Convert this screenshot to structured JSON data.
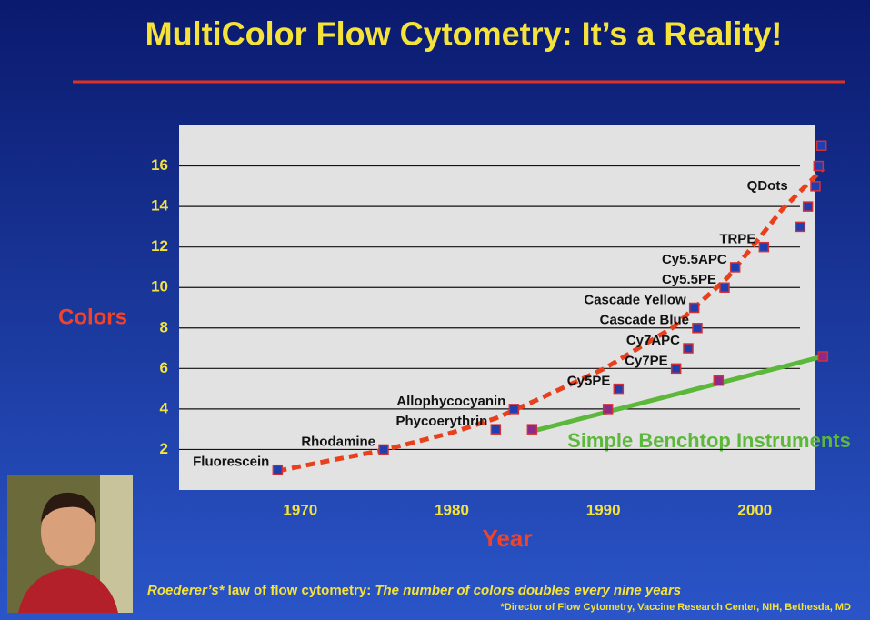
{
  "chart_data": {
    "type": "scatter",
    "title": "MultiColor Flow Cytometry:  It’s a Reality!",
    "x_label": "Year",
    "y_label": "Colors",
    "xlim": [
      1962,
      2004
    ],
    "ylim": [
      0,
      18
    ],
    "xticks": [
      1970,
      1980,
      1990,
      2000
    ],
    "yticks": [
      2,
      4,
      6,
      8,
      10,
      12,
      14,
      16
    ],
    "grid": true,
    "series": [
      {
        "color": "#1f3fb0",
        "border": "#d0303a",
        "x": [
          1968.5,
          1975.5,
          1982.9,
          1984.1,
          1991,
          1994.8,
          1995.6,
          1996.2,
          1996,
          1998,
          1998.7,
          2000.6,
          2003,
          2003.5,
          2004,
          2004.2,
          2004.4
        ],
        "values": [
          1,
          2,
          3,
          4,
          5,
          6,
          7,
          8,
          9,
          10,
          11,
          12,
          13,
          14,
          15,
          16,
          17
        ],
        "labels": [
          "Fluorescein",
          "Rhodamine",
          "Phycoerythrin",
          "Allophycocyanin",
          "Cy5PE",
          "Cy7PE",
          "Cy7APC",
          "Cascade Blue",
          "Cascade Yellow",
          "Cy5.5PE",
          "Cy5.5APC",
          "TRPE",
          null,
          "QDots",
          null,
          null,
          null
        ]
      },
      {
        "name": "Simple Benchtop Instruments",
        "color": "#8a2a8a",
        "border": "#d0303a",
        "x": [
          1985.3,
          1990.3,
          1997.6,
          2004.5
        ],
        "values": [
          3,
          4,
          5.4,
          6.6
        ]
      }
    ],
    "trend_lines": [
      {
        "color": "#e8401c",
        "dashed": true,
        "x": [
          1968.5,
          1970.9,
          1975.5,
          1980,
          1982.9,
          1985.6,
          1990.1,
          1994.6,
          1998.2,
          2001.8,
          2004.5
        ],
        "values": [
          0.94,
          1.3,
          1.97,
          2.83,
          3.54,
          4.44,
          6.01,
          8.03,
          10.49,
          13.85,
          15.87
        ]
      },
      {
        "color": "#5cb83a",
        "dashed": false,
        "x": [
          1985.3,
          2004.5
        ],
        "values": [
          2.9,
          6.6
        ]
      }
    ],
    "caption": {
      "law_name": "Roederer’s*",
      "law_text": " law of flow cytometry: ",
      "law_statement": "The number of colors doubles every nine years"
    },
    "footnote": "*Director of Flow Cytometry, Vaccine Research Center, NIH, Bethesda, MD"
  }
}
